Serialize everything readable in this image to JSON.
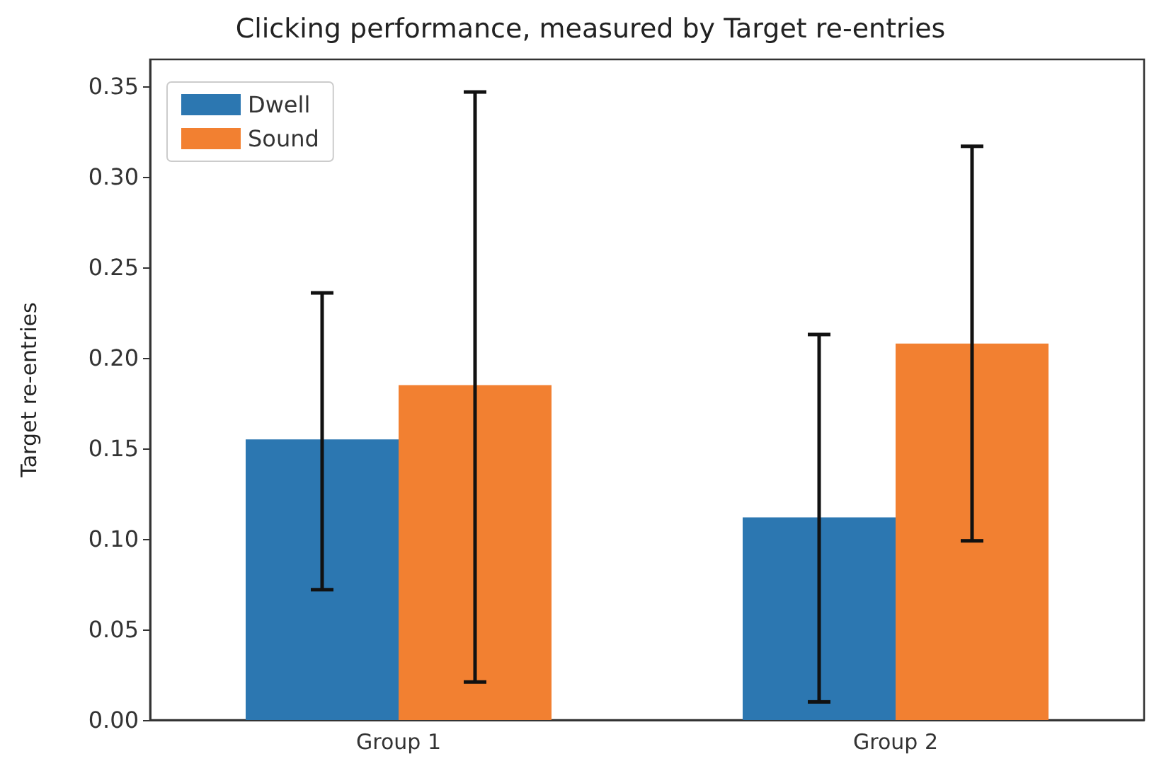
{
  "chart_data": {
    "type": "bar",
    "title": "Clicking performance, measured by Target re-entries",
    "ylabel": "Target re-entries",
    "categories": [
      "Group 1",
      "Group 2"
    ],
    "series": [
      {
        "name": "Dwell",
        "color": "#2c77b1",
        "values": [
          0.155,
          0.112
        ],
        "errors": [
          [
            0.072,
            0.236
          ],
          [
            0.01,
            0.213
          ]
        ]
      },
      {
        "name": "Sound",
        "color": "#f28031",
        "values": [
          0.185,
          0.208
        ],
        "errors": [
          [
            0.021,
            0.347
          ],
          [
            0.099,
            0.317
          ]
        ]
      }
    ],
    "ylim": [
      0,
      0.365
    ],
    "yticks": [
      {
        "value": 0,
        "label": "0.00"
      },
      {
        "value": 0.05,
        "label": "0.05"
      },
      {
        "value": 0.1,
        "label": "0.10"
      },
      {
        "value": 0.15,
        "label": "0.15"
      },
      {
        "value": 0.2,
        "label": "0.20"
      },
      {
        "value": 0.25,
        "label": "0.25"
      },
      {
        "value": 0.3,
        "label": "0.30"
      },
      {
        "value": 0.35,
        "label": "0.35"
      }
    ],
    "grid": false,
    "legend": "top left"
  }
}
